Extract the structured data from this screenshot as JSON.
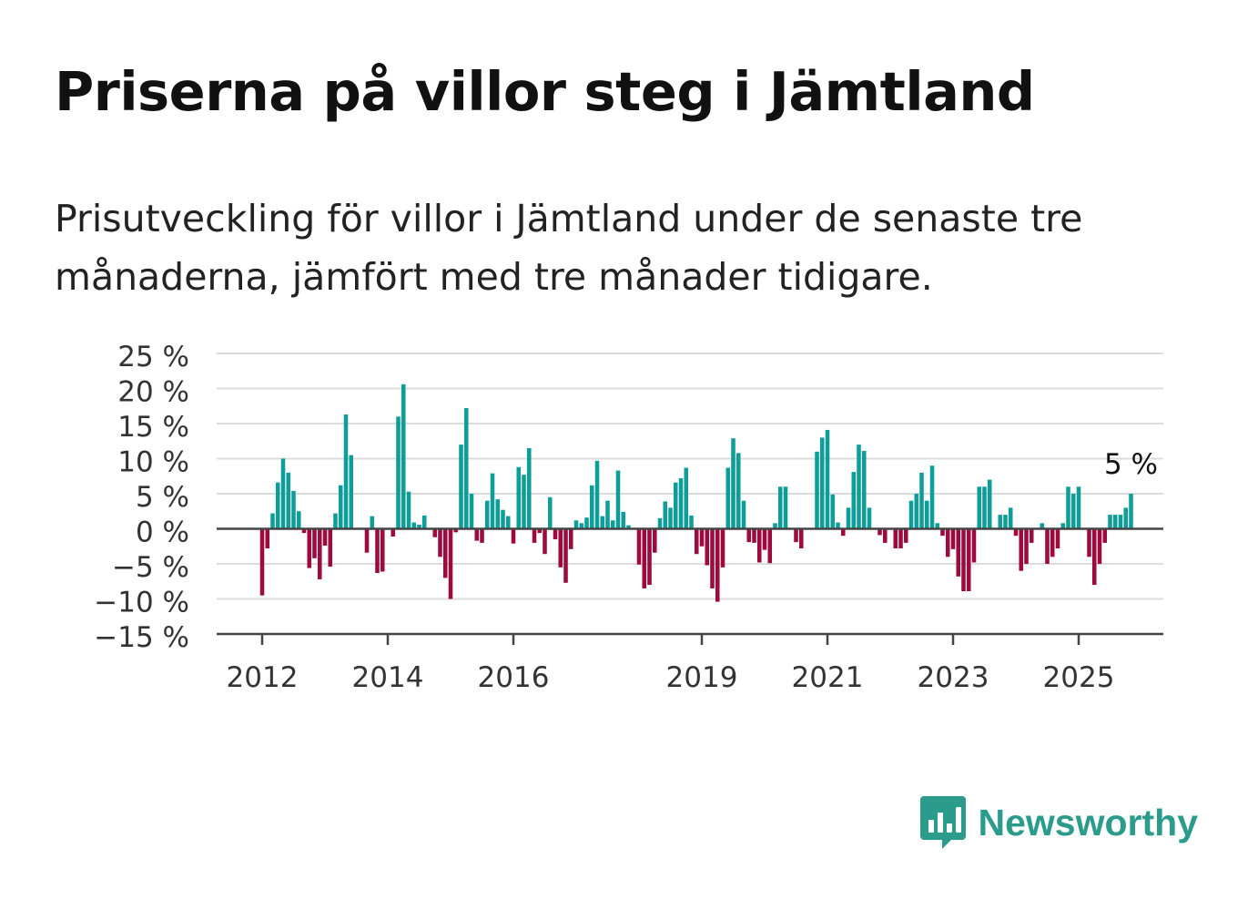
{
  "title": "Priserna på villor steg i Jämtland",
  "subtitle": "Prisutveckling för villor i Jämtland under de senaste tre månaderna, jämfört med tre månader tidigare.",
  "brand": {
    "name": "Newsworthy",
    "icon": "newsworthy-logo-icon",
    "color": "#2b9c8c"
  },
  "colors": {
    "positive": "#0e9e9a",
    "negative": "#9c0a3e",
    "grid": "#dcdcdc",
    "axis": "#444444"
  },
  "chart_data": {
    "type": "bar",
    "title": "Priserna på villor steg i Jämtland",
    "xlabel": "",
    "ylabel": "",
    "grid": true,
    "ylim": [
      -15,
      25
    ],
    "yticks": [
      25,
      20,
      15,
      10,
      5,
      0,
      -5,
      -10,
      -15
    ],
    "ytick_labels": [
      "25 %",
      "20 %",
      "15 %",
      "10 %",
      "5 %",
      "0 %",
      "−5 %",
      "−10 %",
      "−15 %"
    ],
    "xticks": [
      {
        "year": 2012,
        "label": "2012"
      },
      {
        "year": 2014,
        "label": "2014"
      },
      {
        "year": 2016,
        "label": "2016"
      },
      {
        "year": 2019,
        "label": "2019"
      },
      {
        "year": 2021,
        "label": "2021"
      },
      {
        "year": 2023,
        "label": "2023"
      },
      {
        "year": 2025,
        "label": "2025"
      }
    ],
    "annotation": "5 %",
    "start": "2012-01",
    "values": [
      -9.5,
      -2.8,
      2.2,
      6.6,
      10.0,
      8.0,
      5.4,
      2.5,
      -0.6,
      -5.6,
      -4.2,
      -7.2,
      -2.4,
      -5.4,
      2.2,
      6.2,
      16.3,
      10.5,
      0,
      0,
      -3.4,
      1.8,
      -6.3,
      -6.1,
      0,
      -1.1,
      16.0,
      20.6,
      5.3,
      0.9,
      0.6,
      1.9,
      0,
      -1.2,
      -4.0,
      -7.0,
      -10.0,
      -0.5,
      12.0,
      17.2,
      5.0,
      -1.7,
      -2.0,
      4.0,
      7.9,
      4.2,
      2.7,
      1.8,
      -2.1,
      8.8,
      7.7,
      11.5,
      -2.0,
      -0.6,
      -3.6,
      4.5,
      -1.5,
      -5.5,
      -7.7,
      -2.9,
      1.2,
      0.8,
      1.6,
      6.2,
      9.7,
      1.8,
      4.0,
      1.2,
      8.3,
      2.4,
      0.5,
      0,
      -5.1,
      -8.5,
      -8.0,
      -3.4,
      1.5,
      3.9,
      3.0,
      6.6,
      7.2,
      8.7,
      1.9,
      -3.6,
      -2.5,
      -5.2,
      -8.5,
      -10.4,
      -5.5,
      8.7,
      12.9,
      10.8,
      4.0,
      -1.9,
      -2.0,
      -4.8,
      -3.0,
      -4.9,
      0.8,
      6.0,
      6.0,
      0,
      -1.9,
      -2.8,
      0,
      0,
      11.0,
      13.0,
      14.1,
      4.9,
      0.9,
      -1.0,
      3.0,
      8.1,
      12.0,
      11.1,
      3.0,
      0,
      -0.9,
      -2.0,
      0,
      -2.8,
      -2.8,
      -2.0,
      4.0,
      5.0,
      8.0,
      4.0,
      9.0,
      0.8,
      -1.0,
      -4.0,
      -2.9,
      -6.8,
      -8.9,
      -8.9,
      -4.8,
      6.0,
      6.0,
      7.0,
      0,
      2.0,
      2.0,
      3.0,
      -1.0,
      -6.0,
      -5.0,
      -2.0,
      0,
      0.8,
      -5.0,
      -4.0,
      -2.8,
      0.8,
      6.0,
      5.0,
      6.0,
      0,
      -4.0,
      -8.0,
      -5.0,
      -2.0,
      2.0,
      2.0,
      2.0,
      3.0,
      5.0
    ]
  }
}
